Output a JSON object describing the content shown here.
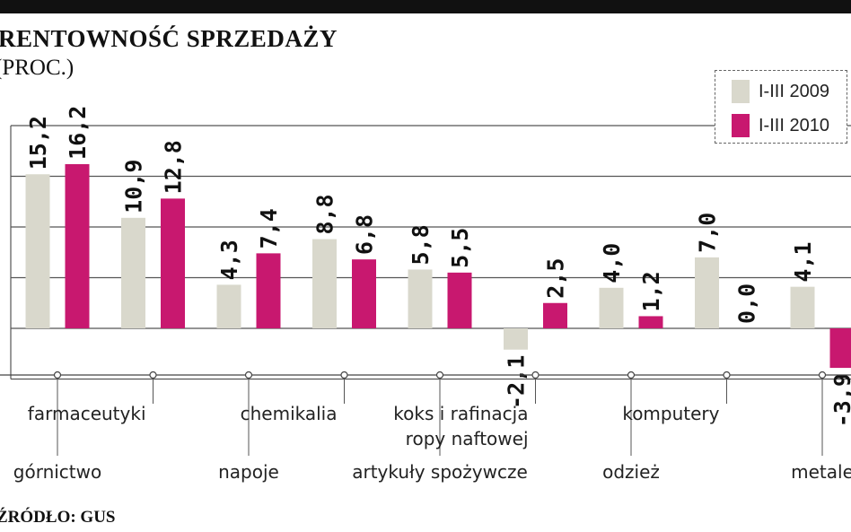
{
  "title": "RENTOWNOŚĆ SPRZEDAŻY",
  "subtitle": "(PROC.)",
  "source": "ŹRÓDŁO: GUS",
  "colors": {
    "series_2009": "#d9d8cc",
    "series_2010": "#c8186f",
    "grid": "#555555",
    "text": "#111111"
  },
  "chart_data": {
    "type": "bar",
    "title": "RENTOWNOŚĆ SPRZEDAŻY",
    "ylabel": "(PROC.)",
    "ylim": [
      -5,
      20
    ],
    "grid": true,
    "legend_placement": "top-right",
    "categories": [
      "górnictwo",
      "farmaceutyki",
      "napoje",
      "chemikalia",
      "artykuły spożywcze",
      "koks i rafinacja ropy naftowej",
      "odzież",
      "komputery",
      "metale"
    ],
    "series": [
      {
        "name": "I-III 2009",
        "values": [
          15.2,
          10.9,
          4.3,
          8.8,
          5.8,
          -2.1,
          4.0,
          7.0,
          4.1
        ],
        "labels": [
          "15,2",
          "10,9",
          "4,3",
          "8,8",
          "5,8",
          "-2,1",
          "4,0",
          "7,0",
          "4,1"
        ]
      },
      {
        "name": "I-III 2010",
        "values": [
          16.2,
          12.8,
          7.4,
          6.8,
          5.5,
          2.5,
          1.2,
          0.0,
          -3.9
        ],
        "labels": [
          "16,2",
          "12,8",
          "7,4",
          "6,8",
          "5,5",
          "2,5",
          "1,2",
          "0,0",
          "-3,9"
        ]
      }
    ],
    "category_labels": [
      {
        "lines": [
          "górnictwo"
        ],
        "row": "low"
      },
      {
        "lines": [
          "farmaceutyki"
        ],
        "row": "high"
      },
      {
        "lines": [
          "napoje"
        ],
        "row": "low"
      },
      {
        "lines": [
          "chemikalia"
        ],
        "row": "high"
      },
      {
        "lines": [
          "artykuły spożywcze"
        ],
        "row": "low"
      },
      {
        "lines": [
          "koks i rafinacja",
          "ropy naftowej"
        ],
        "row": "high"
      },
      {
        "lines": [
          "odzież"
        ],
        "row": "low"
      },
      {
        "lines": [
          "komputery"
        ],
        "row": "high"
      },
      {
        "lines": [
          "metale"
        ],
        "row": "low"
      }
    ]
  }
}
